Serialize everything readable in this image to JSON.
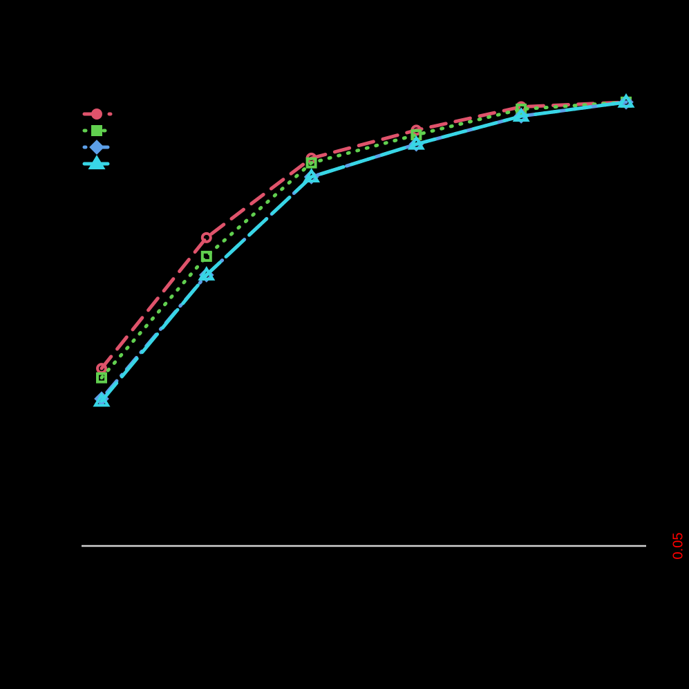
{
  "chart_data": {
    "type": "line",
    "title": "",
    "xlabel": "",
    "ylabel": "",
    "x": [
      1,
      2,
      3,
      4,
      5,
      6
    ],
    "ylim": [
      0,
      1
    ],
    "grid": false,
    "legend_position": "topleft",
    "background": "#000000",
    "series": [
      {
        "name": "",
        "color": "#DF536B",
        "marker": "circle-open",
        "line": "dashed",
        "values": [
          0.43,
          0.71,
          0.88,
          0.94,
          0.99,
          1.0
        ]
      },
      {
        "name": "",
        "color": "#61D04F",
        "marker": "square-open",
        "line": "dotted",
        "values": [
          0.41,
          0.67,
          0.87,
          0.93,
          0.985,
          1.0
        ]
      },
      {
        "name": "",
        "color": "#5D9FE8",
        "marker": "diamond-open",
        "line": "dotdash",
        "values": [
          0.365,
          0.63,
          0.84,
          0.91,
          0.97,
          1.0
        ]
      },
      {
        "name": "",
        "color": "#38D6E6",
        "marker": "triangle-open",
        "line": "longdash",
        "values": [
          0.36,
          0.63,
          0.84,
          0.91,
          0.97,
          1.0
        ]
      }
    ],
    "reference_line": {
      "y": 0.05,
      "color": "#D3D3D3",
      "label": "0.05",
      "label_color": "#FF0000",
      "label_side": "right"
    }
  }
}
